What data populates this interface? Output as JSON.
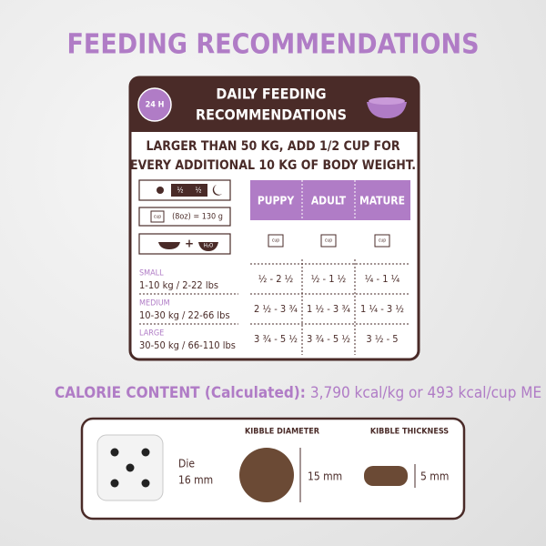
{
  "title": "FEEDING RECOMMENDATIONS",
  "feeding_card": {
    "badge": "24 H",
    "heading": [
      "DAILY FEEDING",
      "RECOMMENDATIONS"
    ],
    "note": [
      "LARGER THAN 50 KG, ADD 1/2 CUP FOR",
      "EVERY ADDITIONAL 10 KG OF BODY WEIGHT."
    ],
    "icons": {
      "meal_split": [
        "½",
        "½"
      ],
      "cup": "cup",
      "cup_weight": "(8oz) = 130 g",
      "water": "H₂O"
    },
    "columns": [
      "PUPPY",
      "ADULT",
      "MATURE"
    ],
    "rows": [
      {
        "size": "SMALL",
        "weight": "1-10 kg / 2-22 lbs",
        "values": [
          "½ - 2 ½",
          "½ - 1 ½",
          "¼ - 1 ¼"
        ]
      },
      {
        "size": "MEDIUM",
        "weight": "10-30 kg / 22-66 lbs",
        "values": [
          "2 ½ - 3 ¾",
          "1 ½ - 3 ¾",
          "1 ¼ - 3 ½"
        ]
      },
      {
        "size": "LARGE",
        "weight": "30-50 kg / 66-110 lbs",
        "values": [
          "3 ¾ - 5 ½",
          "3 ¾ - 5 ½",
          "3 ½ - 5"
        ]
      }
    ]
  },
  "calorie": {
    "label": "CALORIE CONTENT (Calculated):",
    "value": "3,790 kcal/kg or 493 kcal/cup ME"
  },
  "sizes": {
    "die": {
      "label": "Die",
      "size": "16 mm"
    },
    "diameter": {
      "title": "KIBBLE DIAMETER",
      "size": "15 mm"
    },
    "thickness": {
      "title": "KIBBLE THICKNESS",
      "size": "5 mm"
    }
  }
}
